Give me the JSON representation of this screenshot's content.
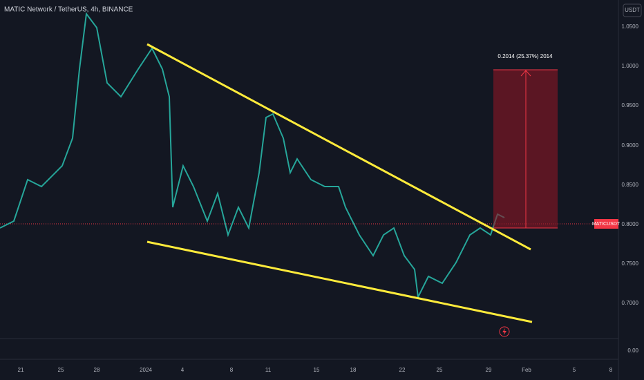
{
  "header": {
    "title": "MATIC Network / TetherUS, 4h, BINANCE",
    "currency": "USDT"
  },
  "price_axis": {
    "labels": [
      "1.0500",
      "1.0000",
      "0.9500",
      "0.9000",
      "0.8500",
      "0.8000",
      "0.7500",
      "0.7000",
      "0.00"
    ]
  },
  "time_axis": {
    "labels": [
      "21",
      "25",
      "28",
      "2024",
      "4",
      "8",
      "11",
      "15",
      "18",
      "22",
      "25",
      "29",
      "Feb",
      "5",
      "8"
    ]
  },
  "annotation": "0.2014 (25.37%) 2014",
  "price_tag": "MATICUSDT"
}
